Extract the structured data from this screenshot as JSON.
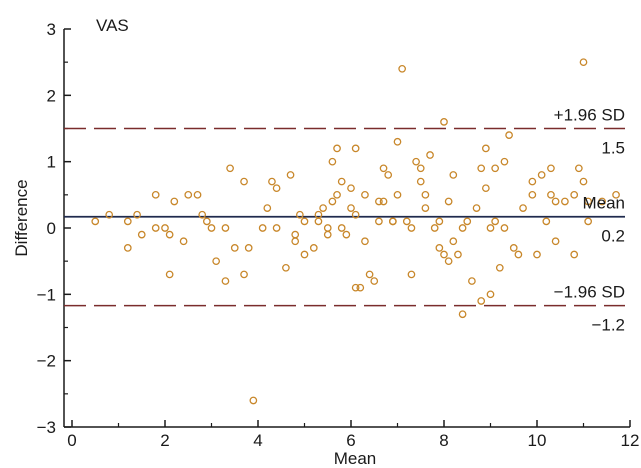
{
  "chart_data": {
    "type": "scatter",
    "title": "",
    "panel_label": "VAS",
    "xlabel": "Mean",
    "ylabel": "Difference",
    "xlim": [
      0,
      12
    ],
    "ylim": [
      -3,
      3
    ],
    "x_ticks": [
      0,
      2,
      4,
      6,
      8,
      10,
      12
    ],
    "y_ticks": [
      -3,
      -2,
      -1,
      0,
      1,
      2,
      3
    ],
    "grid": false,
    "colors": {
      "points": "#c8872a",
      "mean_line": "#1f2a4d",
      "limit_lines": "#7a2c2c",
      "axes": "#1a1a1a"
    },
    "reference_lines": {
      "upper": {
        "label": "+1.96 SD",
        "value_label": "1.5",
        "y": 1.5,
        "style": "dashed"
      },
      "mean": {
        "label": "Mean",
        "value_label": "0.2",
        "y": 0.17,
        "style": "solid"
      },
      "lower": {
        "label": "−1.96 SD",
        "value_label": "−1.2",
        "y": -1.17,
        "style": "dashed"
      }
    },
    "points": [
      [
        0.5,
        0.1
      ],
      [
        0.8,
        0.2
      ],
      [
        1.2,
        0.1
      ],
      [
        1.2,
        -0.3
      ],
      [
        1.4,
        0.2
      ],
      [
        1.5,
        -0.1
      ],
      [
        1.8,
        0.5
      ],
      [
        1.8,
        0.0
      ],
      [
        2.0,
        0.0
      ],
      [
        2.1,
        -0.1
      ],
      [
        2.1,
        -0.7
      ],
      [
        2.2,
        0.4
      ],
      [
        2.4,
        -0.2
      ],
      [
        2.5,
        0.5
      ],
      [
        2.7,
        0.5
      ],
      [
        2.8,
        0.2
      ],
      [
        2.9,
        0.1
      ],
      [
        3.0,
        0.0
      ],
      [
        3.1,
        -0.5
      ],
      [
        3.3,
        -0.8
      ],
      [
        3.3,
        0.0
      ],
      [
        3.4,
        0.9
      ],
      [
        3.5,
        -0.3
      ],
      [
        3.7,
        0.7
      ],
      [
        3.7,
        -0.7
      ],
      [
        3.8,
        -0.3
      ],
      [
        3.9,
        -2.6
      ],
      [
        4.2,
        0.3
      ],
      [
        4.3,
        0.7
      ],
      [
        4.4,
        0.6
      ],
      [
        4.4,
        0.0
      ],
      [
        4.6,
        -0.6
      ],
      [
        4.7,
        0.8
      ],
      [
        4.8,
        -0.1
      ],
      [
        4.8,
        -0.2
      ],
      [
        4.9,
        0.2
      ],
      [
        5.0,
        -0.4
      ],
      [
        5.0,
        0.1
      ],
      [
        5.2,
        -0.3
      ],
      [
        5.3,
        0.1
      ],
      [
        5.3,
        0.2
      ],
      [
        5.4,
        0.3
      ],
      [
        5.5,
        0.0
      ],
      [
        5.6,
        1.0
      ],
      [
        5.6,
        0.4
      ],
      [
        5.7,
        0.5
      ],
      [
        5.7,
        1.2
      ],
      [
        5.8,
        0.0
      ],
      [
        5.8,
        0.7
      ],
      [
        5.9,
        -0.1
      ],
      [
        6.0,
        0.6
      ],
      [
        6.1,
        1.2
      ],
      [
        6.1,
        0.2
      ],
      [
        6.1,
        -0.9
      ],
      [
        6.2,
        -0.9
      ],
      [
        6.3,
        -0.2
      ],
      [
        6.3,
        0.5
      ],
      [
        6.4,
        -0.7
      ],
      [
        6.5,
        -0.8
      ],
      [
        6.6,
        0.1
      ],
      [
        6.7,
        0.4
      ],
      [
        6.7,
        0.9
      ],
      [
        6.8,
        0.8
      ],
      [
        6.9,
        0.1
      ],
      [
        7.0,
        1.3
      ],
      [
        7.0,
        0.5
      ],
      [
        7.1,
        2.4
      ],
      [
        7.2,
        0.1
      ],
      [
        7.3,
        -0.7
      ],
      [
        7.3,
        0.0
      ],
      [
        7.4,
        1.0
      ],
      [
        7.5,
        0.9
      ],
      [
        7.5,
        0.7
      ],
      [
        7.6,
        0.3
      ],
      [
        7.6,
        0.5
      ],
      [
        7.7,
        1.1
      ],
      [
        7.8,
        0.0
      ],
      [
        7.9,
        0.1
      ],
      [
        8.0,
        1.6
      ],
      [
        8.1,
        0.4
      ],
      [
        8.1,
        -0.5
      ],
      [
        8.2,
        -0.2
      ],
      [
        8.2,
        0.8
      ],
      [
        8.3,
        -0.4
      ],
      [
        8.4,
        -1.3
      ],
      [
        8.4,
        0.0
      ],
      [
        8.5,
        0.1
      ],
      [
        8.6,
        -0.8
      ],
      [
        8.7,
        0.3
      ],
      [
        8.8,
        0.9
      ],
      [
        8.9,
        0.6
      ],
      [
        8.9,
        1.2
      ],
      [
        9.0,
        -1.0
      ],
      [
        9.1,
        0.9
      ],
      [
        9.1,
        0.1
      ],
      [
        9.2,
        -0.6
      ],
      [
        9.3,
        1.0
      ],
      [
        9.4,
        1.4
      ],
      [
        9.5,
        -0.3
      ],
      [
        9.6,
        -0.4
      ],
      [
        9.7,
        0.3
      ],
      [
        9.9,
        0.5
      ],
      [
        10.0,
        -0.4
      ],
      [
        10.1,
        0.8
      ],
      [
        10.2,
        0.1
      ],
      [
        10.3,
        0.5
      ],
      [
        10.4,
        0.4
      ],
      [
        10.6,
        0.4
      ],
      [
        10.8,
        0.5
      ],
      [
        11.0,
        2.5
      ],
      [
        9.0,
        0.0
      ],
      [
        8.8,
        -1.1
      ],
      [
        9.3,
        0.0
      ],
      [
        10.9,
        0.9
      ],
      [
        11.0,
        0.7
      ],
      [
        11.1,
        0.1
      ],
      [
        11.1,
        0.4
      ],
      [
        8.0,
        -0.4
      ],
      [
        7.9,
        -0.3
      ],
      [
        6.9,
        0.1
      ],
      [
        6.6,
        0.4
      ],
      [
        6.0,
        0.3
      ],
      [
        5.5,
        -0.1
      ],
      [
        4.1,
        0.0
      ],
      [
        10.8,
        -0.4
      ],
      [
        11.4,
        0.4
      ],
      [
        11.7,
        0.5
      ],
      [
        10.3,
        0.9
      ],
      [
        10.4,
        -0.2
      ],
      [
        9.9,
        0.7
      ]
    ]
  }
}
